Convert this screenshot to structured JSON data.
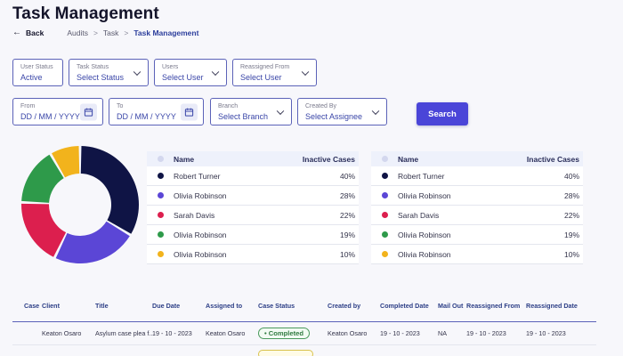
{
  "header": {
    "title": "Task Management",
    "back_label": "Back",
    "breadcrumbs": [
      "Audits",
      "Task",
      "Task Management"
    ]
  },
  "filters": {
    "user_status": {
      "label": "User Status",
      "value": "Active"
    },
    "task_status": {
      "label": "Task Status",
      "value": "Select Status"
    },
    "users": {
      "label": "Users",
      "value": "Select User"
    },
    "reassigned_from": {
      "label": "Reassigned From",
      "value": "Select User"
    },
    "from": {
      "label": "From",
      "value": "DD / MM / YYYY"
    },
    "to": {
      "label": "To",
      "value": "DD / MM / YYYY"
    },
    "branch": {
      "label": "Branch",
      "value": "Select Branch"
    },
    "created_by": {
      "label": "Created By",
      "value": "Select Assignee"
    },
    "search_label": "Search"
  },
  "chart_data": {
    "type": "pie",
    "donut": true,
    "categories": [
      "Robert Turner",
      "Olivia Robinson",
      "Sarah Davis",
      "Olivia Robinson",
      "Olivia Robinson"
    ],
    "values": [
      40,
      28,
      22,
      19,
      10
    ],
    "colors": [
      "#0f1445",
      "#5b46d6",
      "#dc1f4e",
      "#2e9a4a",
      "#f2b31c"
    ]
  },
  "case_tables": [
    {
      "headers": {
        "name": "Name",
        "inactive": "Inactive Cases"
      },
      "rows": [
        {
          "name": "Robert Turner",
          "pct": "40%",
          "color": "#0f1445"
        },
        {
          "name": "Olivia Robinson",
          "pct": "28%",
          "color": "#5b46d6"
        },
        {
          "name": "Sarah Davis",
          "pct": "22%",
          "color": "#dc1f4e"
        },
        {
          "name": "Olivia Robinson",
          "pct": "19%",
          "color": "#2e9a4a"
        },
        {
          "name": "Olivia Robinson",
          "pct": "10%",
          "color": "#f2b31c"
        }
      ]
    },
    {
      "headers": {
        "name": "Name",
        "inactive": "Inactive Cases"
      },
      "rows": [
        {
          "name": "Robert Turner",
          "pct": "40%",
          "color": "#0f1445"
        },
        {
          "name": "Olivia Robinson",
          "pct": "28%",
          "color": "#5b46d6"
        },
        {
          "name": "Sarah Davis",
          "pct": "22%",
          "color": "#dc1f4e"
        },
        {
          "name": "Olivia Robinson",
          "pct": "19%",
          "color": "#2e9a4a"
        },
        {
          "name": "Olivia Robinson",
          "pct": "10%",
          "color": "#f2b31c"
        }
      ]
    }
  ],
  "tasks_table": {
    "headers": [
      "Case",
      "Client",
      "Title",
      "Due Date",
      "Assigned to",
      "Case Status",
      "Created by",
      "Completed Date",
      "Mail Out",
      "Reassigned From",
      "Reassigned Date"
    ],
    "rows": [
      {
        "case": "",
        "client": "Keaton Osaro",
        "title": "Asylum case plea f...",
        "due_date": "19 - 10 - 2023",
        "assigned_to": "Keaton Osaro",
        "status": "Completed",
        "created_by": "Keaton Osaro",
        "completed_date": "19 - 10 - 2023",
        "mail_out": "NA",
        "reassigned_from": "19 - 10 - 2023",
        "reassigned_date": "19 - 10 - 2023"
      }
    ]
  }
}
